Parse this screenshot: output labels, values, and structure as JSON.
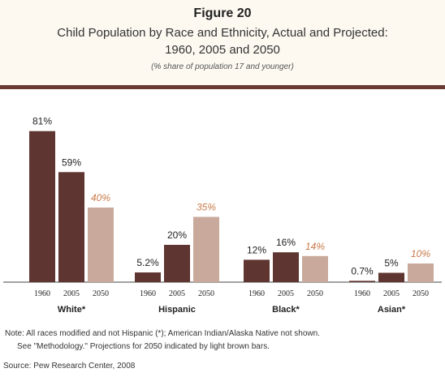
{
  "figure_label": "Figure 20",
  "title_line1": "Child Population by Race and Ethnicity, Actual and Projected:",
  "title_line2": "1960, 2005 and 2050",
  "subtitle": "(% share of population 17 and younger)",
  "note_line1": "Note: All races modified and not Hispanic (*); American Indian/Alaska Native not shown.",
  "note_line2": "See \"Methodology.\" Projections for 2050 indicated by light brown bars.",
  "source": "Source: Pew Research Center, 2008",
  "colors": {
    "actual": "#5e3530",
    "projected": "#c9a99b",
    "projected_label": "#c87a4a"
  },
  "chart_data": {
    "type": "bar",
    "groups": [
      {
        "name": "White*",
        "years": [
          "1960",
          "2005",
          "2050"
        ],
        "values": [
          81,
          59,
          40
        ],
        "labels": [
          "81%",
          "59%",
          "40%"
        ]
      },
      {
        "name": "Hispanic",
        "years": [
          "1960",
          "2005",
          "2050"
        ],
        "values": [
          5.2,
          20,
          35
        ],
        "labels": [
          "5.2%",
          "20%",
          "35%"
        ]
      },
      {
        "name": "Black*",
        "years": [
          "1960",
          "2005",
          "2050"
        ],
        "values": [
          12,
          16,
          14
        ],
        "labels": [
          "12%",
          "16%",
          "14%"
        ]
      },
      {
        "name": "Asian*",
        "years": [
          "1960",
          "2005",
          "2050"
        ],
        "values": [
          0.7,
          5,
          10
        ],
        "labels": [
          "0.7%",
          "5%",
          "10%"
        ]
      }
    ],
    "projected_index": 2,
    "ylim": [
      0,
      100
    ]
  }
}
